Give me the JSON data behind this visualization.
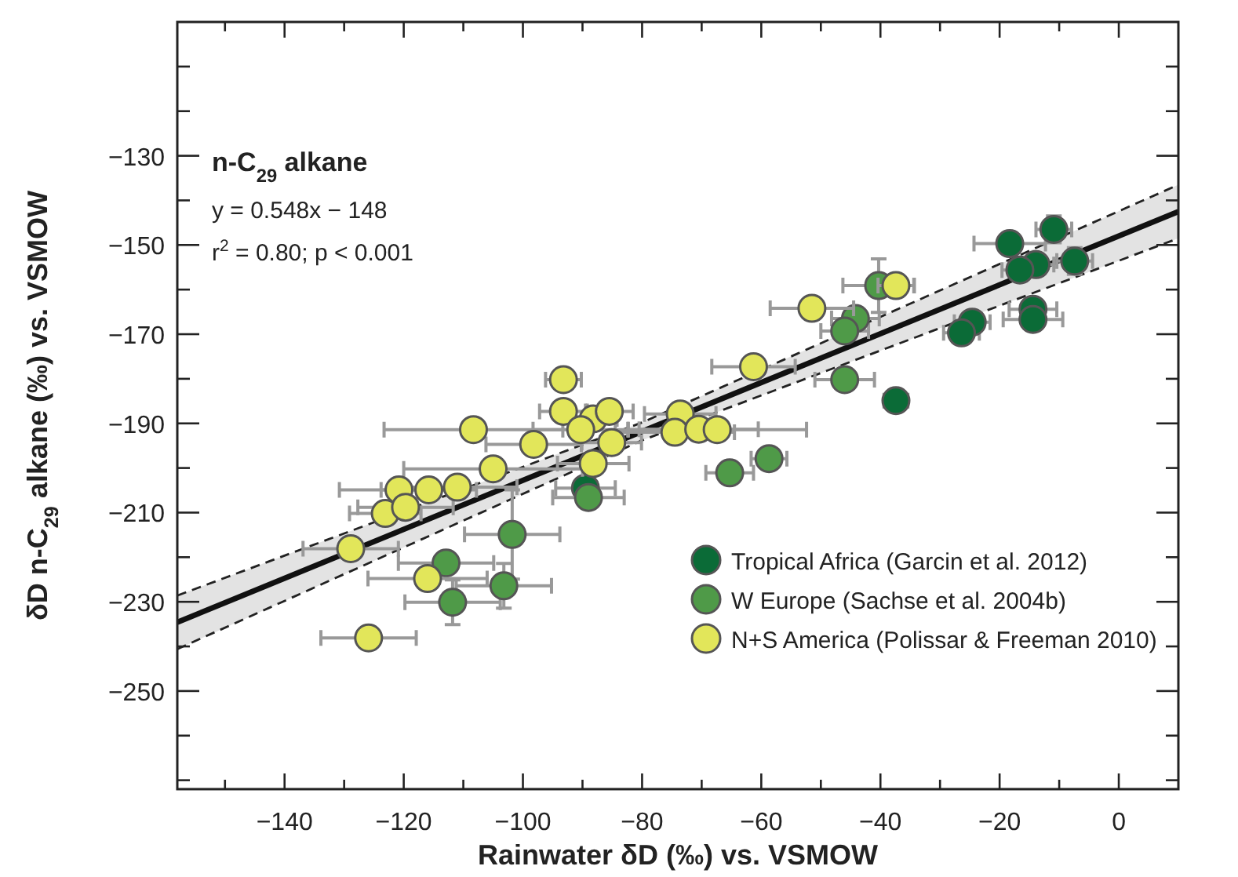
{
  "chart_data": {
    "type": "scatter",
    "xlabel": "Rainwater δD (‰) vs. VSMOW",
    "ylabel": "δD n-C$_{29}$ alkane (‰) vs. VSMOW",
    "annotations": [
      "n-C$_{29}$ alkane",
      "y = 0.548x − 148",
      "r$^{2}$ = 0.80; p < 0.001"
    ],
    "xlim": [
      -158,
      10
    ],
    "ylim": [
      -272,
      -100
    ],
    "xticks": [
      {
        "value": -150,
        "label": null
      },
      -140,
      {
        "value": -130,
        "label": null
      },
      -120,
      {
        "value": -110,
        "label": null
      },
      -100,
      {
        "value": -90,
        "label": null
      },
      -80,
      {
        "value": -70,
        "label": null
      },
      -60,
      {
        "value": -50,
        "label": null
      },
      -40,
      {
        "value": -30,
        "label": null
      },
      -20,
      {
        "value": -10,
        "label": null
      },
      0
    ],
    "yticks": [
      {
        "value": -110,
        "label": null
      },
      {
        "value": -120,
        "label": null
      },
      -130,
      {
        "value": -140,
        "label": null
      },
      -150,
      {
        "value": -160,
        "label": null
      },
      -170,
      {
        "value": -180,
        "label": null
      },
      -190,
      {
        "value": -200,
        "label": null
      },
      -210,
      {
        "value": -220,
        "label": null
      },
      -230,
      {
        "value": -240,
        "label": null
      },
      -250,
      {
        "value": -260,
        "label": null
      },
      {
        "value": -270,
        "label": null
      }
    ],
    "grid": false,
    "legend": "bottom right",
    "marker": "circle",
    "series": [
      {
        "type": "line",
        "color": "#111111",
        "line_style": "solid",
        "marker": "none",
        "x": [
          -158,
          -80,
          10
        ],
        "values": [
          -234.6,
          -191.8,
          -142.5
        ],
        "lower": [
          -240.6,
          -193.8,
          -148.5
        ],
        "upper": [
          -228.6,
          -189.8,
          -136.5
        ]
      },
      {
        "type": "line",
        "color": "#222222",
        "line_style": "dashed",
        "marker": "none",
        "x": [
          -158,
          -80,
          10
        ],
        "values": [
          -240.6,
          -193.8,
          -148.5
        ]
      },
      {
        "type": "line",
        "color": "#222222",
        "line_style": "dashed",
        "marker": "none",
        "x": [
          -158,
          -80,
          10
        ],
        "values": [
          -228.6,
          -189.8,
          -136.5
        ]
      },
      {
        "name": "Tropical Africa (Garcin et al. 2012)",
        "color": "#0b6b37",
        "x": [
          -89.5,
          -37.4,
          -18.3,
          -10.9,
          -13.9,
          -16.6,
          -7.4,
          -14.4,
          -14.4,
          -24.6,
          -26.4
        ],
        "values": [
          -204.5,
          -184.9,
          -149.7,
          -146.5,
          -154.4,
          -155.6,
          -153.6,
          -164.4,
          -166.7,
          -167.3,
          -169.7
        ],
        "xerrors": [
          5,
          2,
          6,
          3,
          3,
          3,
          3,
          4,
          5,
          3,
          3
        ],
        "errors": [
          null,
          null,
          null,
          3,
          null,
          null,
          3,
          null,
          null,
          null,
          null
        ]
      },
      {
        "name": "W Europe (Sachse et al. 2004b)",
        "color": "#4f9a48",
        "x": [
          -40.3,
          -44.2,
          -46,
          -46,
          -58.7,
          -65.3,
          -89,
          -101.8,
          -112.9,
          -103.2,
          -111.8
        ],
        "values": [
          -159.1,
          -166.5,
          -169.3,
          -180.2,
          -197.9,
          -201.1,
          -206.6,
          -214.9,
          -221.3,
          -226.4,
          -230.1
        ],
        "xerrors": [
          6,
          4,
          4,
          5,
          3,
          4,
          6,
          8,
          8,
          8,
          8
        ],
        "errors": [
          6,
          null,
          null,
          null,
          null,
          null,
          null,
          10,
          null,
          5,
          5
        ]
      },
      {
        "name": "N+S America (Polissar & Freeman 2010)",
        "color": "#e2e65a",
        "x": [
          -93.2,
          -93.2,
          -88.2,
          -85.5,
          -90.3,
          -85.1,
          -88.2,
          -108.3,
          -98.2,
          -105,
          -120.8,
          -115.8,
          -111,
          -123.1,
          -119.7,
          -128.9,
          -116,
          -125.9,
          -73.6,
          -74.5,
          -70.5,
          -67.4,
          -61.3,
          -51.5,
          -37.4
        ],
        "values": [
          -180.2,
          -187.3,
          -189,
          -187.3,
          -191.4,
          -194.3,
          -199,
          -191.4,
          -194.7,
          -200.2,
          -204.9,
          -204.9,
          -204.3,
          -210.2,
          -208.8,
          -218.1,
          -224.8,
          -238.1,
          -187.9,
          -192,
          -191.3,
          -191.4,
          -177.3,
          -164.2,
          -159.1
        ],
        "xerrors": [
          3,
          4,
          4,
          4,
          8,
          5,
          6,
          15,
          8,
          15,
          10,
          8,
          10,
          6,
          8,
          8,
          10,
          8,
          6,
          10,
          10,
          15,
          7,
          7,
          3
        ]
      }
    ]
  }
}
